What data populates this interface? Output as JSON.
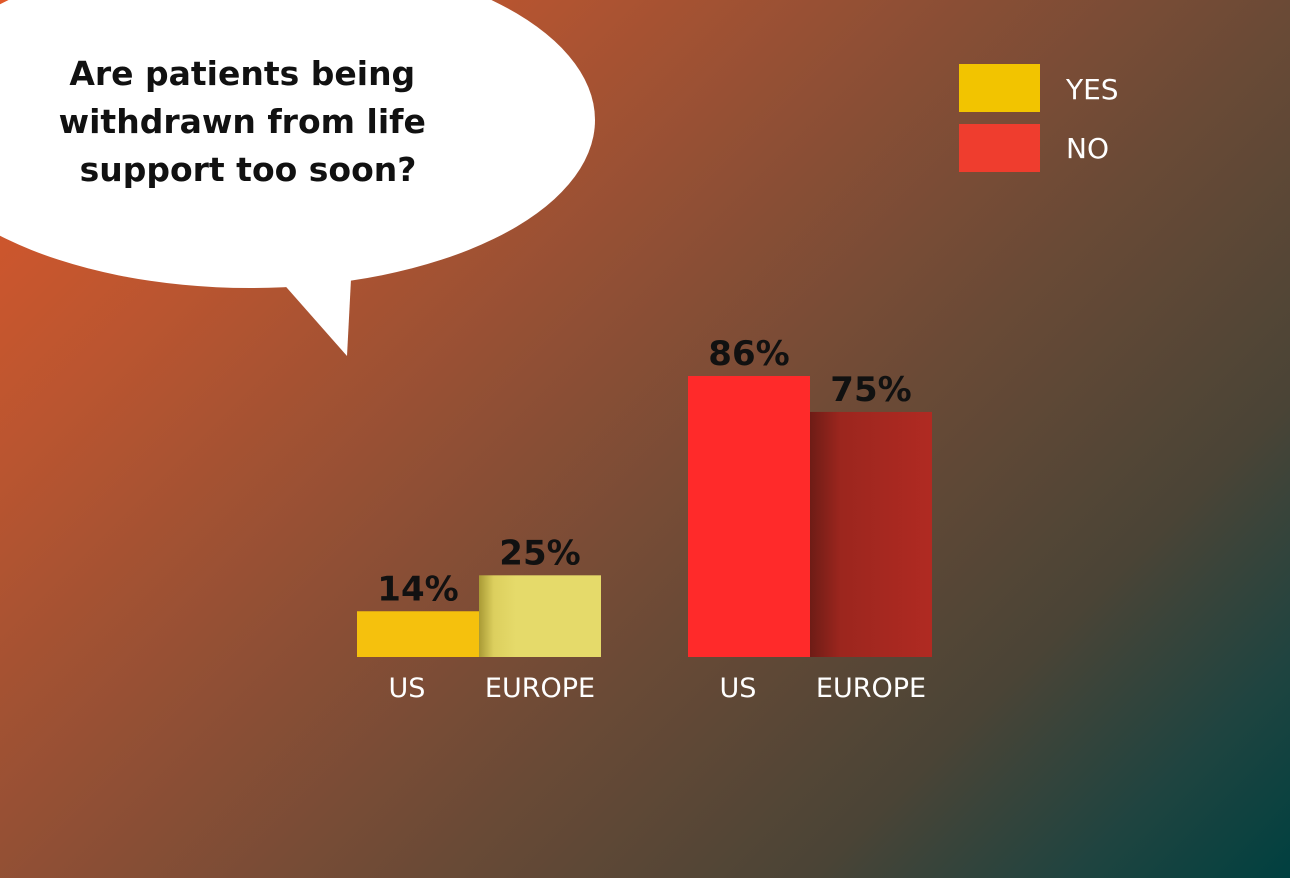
{
  "chart_data": {
    "type": "bar",
    "title": "Are patients being withdrawn from life support too soon?",
    "title_lines": [
      "Are patients being",
      "withdrawn from life",
      "support too soon?"
    ],
    "categories": [
      "US",
      "EUROPE"
    ],
    "ylim": [
      0,
      100
    ],
    "grid": false,
    "legend_position": "top-right",
    "series": [
      {
        "name": "YES",
        "values": [
          14,
          25
        ],
        "labels": [
          "14%",
          "25%"
        ],
        "legend_color": "#f2c400",
        "colors": [
          "#f5c10d",
          "#e5da6a"
        ]
      },
      {
        "name": "NO",
        "values": [
          86,
          75
        ],
        "labels": [
          "86%",
          "75%"
        ],
        "legend_color": "#ef3d2e",
        "colors": [
          "#ff2a2a",
          "#b02a22"
        ]
      }
    ]
  }
}
